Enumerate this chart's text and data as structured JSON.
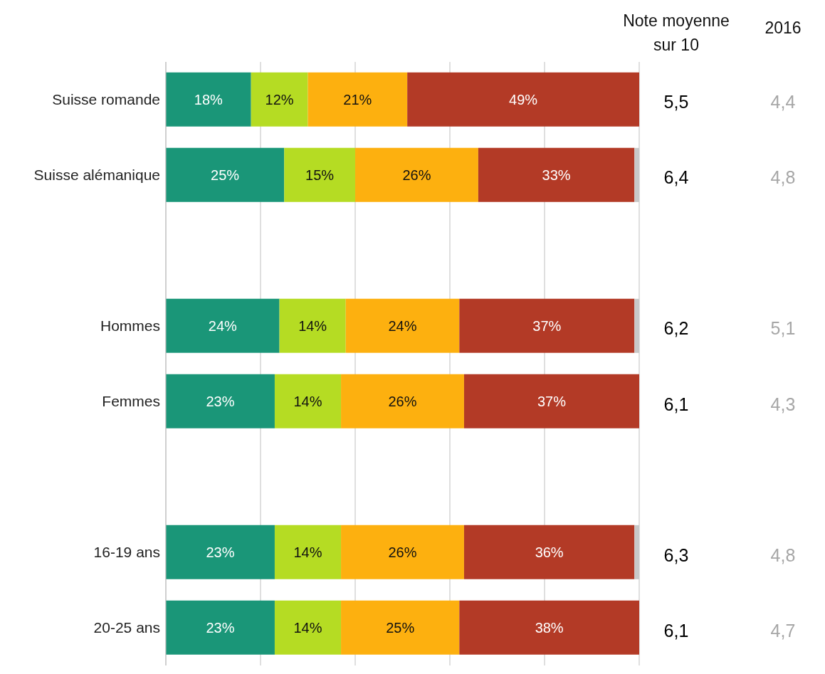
{
  "chart_data": {
    "type": "bar",
    "orientation": "horizontal",
    "stacked": true,
    "categories": [
      "Suisse romande",
      "Suisse alémanique",
      null,
      "Hommes",
      "Femmes",
      null,
      "16-19 ans",
      "20-25 ans"
    ],
    "series": [
      {
        "color": "#1a9678",
        "values": [
          18,
          25,
          null,
          24,
          23,
          null,
          23,
          23
        ],
        "value_labels": [
          "18%",
          "25%",
          null,
          "24%",
          "23%",
          null,
          "23%",
          "23%"
        ]
      },
      {
        "color": "#b5dc23",
        "values": [
          12,
          15,
          null,
          14,
          14,
          null,
          14,
          14
        ],
        "value_labels": [
          "12%",
          "15%",
          null,
          "14%",
          "14%",
          null,
          "14%",
          "14%"
        ]
      },
      {
        "color": "#fdb00f",
        "values": [
          21,
          26,
          null,
          24,
          26,
          null,
          26,
          25
        ],
        "value_labels": [
          "21%",
          "26%",
          null,
          "24%",
          "26%",
          null,
          "26%",
          "25%"
        ]
      },
      {
        "color": "#b33a26",
        "values": [
          49,
          33,
          null,
          37,
          37,
          null,
          36,
          38
        ],
        "value_labels": [
          "49%",
          "33%",
          null,
          "37%",
          "37%",
          null,
          "36%",
          "38%"
        ]
      },
      {
        "color": "#c8c8c8",
        "values": [
          null,
          1,
          null,
          1,
          null,
          null,
          1,
          null
        ]
      }
    ],
    "tick_labels": "y",
    "grid": "x",
    "annotations": [
      "Note moyenne sur 10",
      "2016",
      "5,5",
      "4,4",
      "6,4",
      "4,8",
      "6,2",
      "5,1",
      "6,1",
      "4,3",
      "6,3",
      "4,8",
      "6,1",
      "4,7"
    ]
  }
}
